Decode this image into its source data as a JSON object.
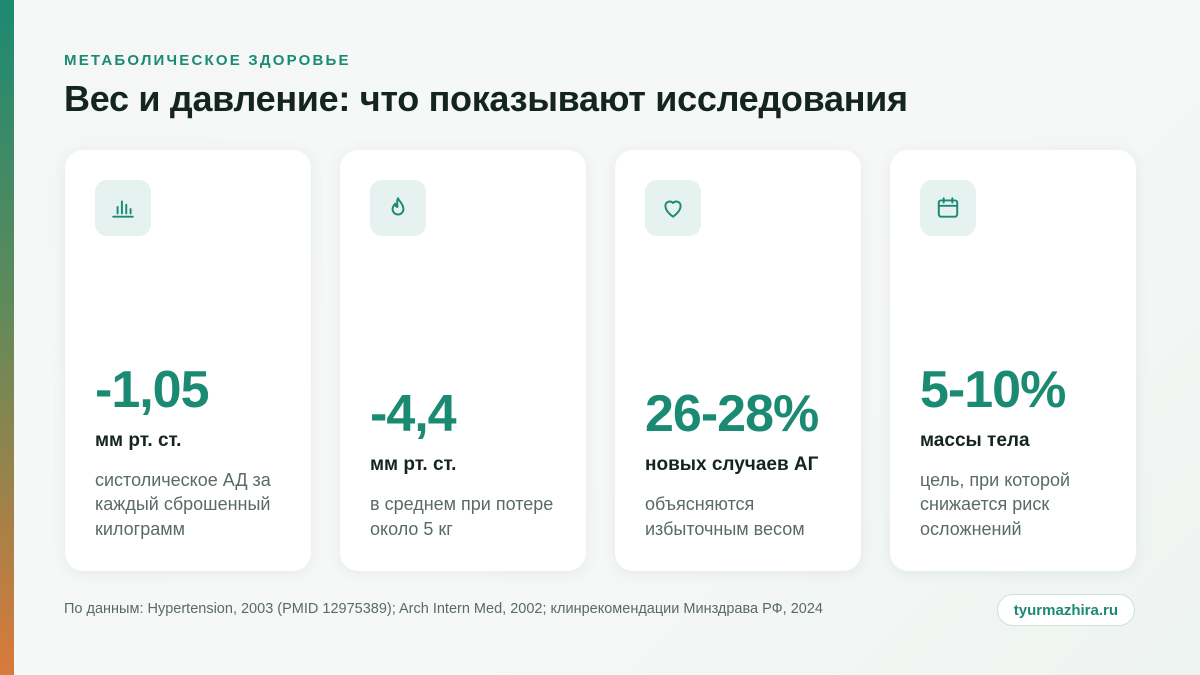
{
  "header": {
    "eyebrow": "МЕТАБОЛИЧЕСКОЕ ЗДОРОВЬЕ",
    "title": "Вес и давление: что показывают исследования"
  },
  "cards": [
    {
      "icon": "bar-chart-icon",
      "value": "-1,05",
      "unit": "мм рт. ст.",
      "description": "систолическое АД за каждый сброшенный килограмм"
    },
    {
      "icon": "flame-icon",
      "value": "-4,4",
      "unit": "мм рт. ст.",
      "description": "в среднем при потере около 5 кг"
    },
    {
      "icon": "heart-icon",
      "value": "26-28%",
      "unit": "новых случаев АГ",
      "description": "объясняются избыточным весом"
    },
    {
      "icon": "calendar-icon",
      "value": "5-10%",
      "unit": "массы тела",
      "description": "цель, при которой снижается риск осложнений"
    }
  ],
  "footer": {
    "source": "По данным: Hypertension, 2003 (PMID 12975389); Arch Intern Med, 2002; клинрекомендации Минздрава РФ, 2024",
    "site": "tyurmazhira.ru"
  },
  "colors": {
    "accent": "#1b8a72",
    "text": "#14241f",
    "muted": "#5a6a66",
    "icon_bg": "#e6f2ef"
  }
}
